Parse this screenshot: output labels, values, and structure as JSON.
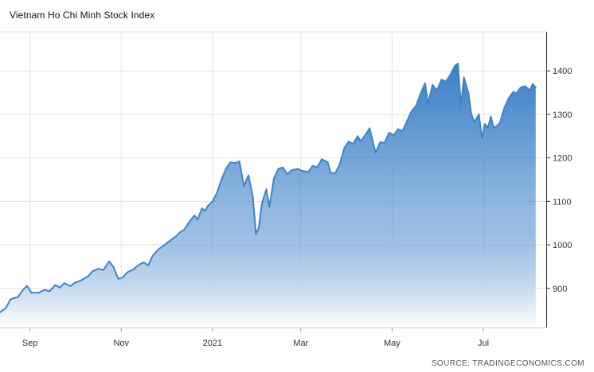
{
  "colors": {
    "line": "#3f83c7",
    "fill_top": "#3a7fc8",
    "fill_bottom": "#ffffff",
    "grid": "#e2e2e2",
    "axis": "#333333"
  },
  "chart_data": {
    "type": "area",
    "title": "Vietnam Ho Chi Minh Stock Index",
    "source": "SOURCE: TRADINGECONOMICS.COM",
    "xlabel": "",
    "ylabel": "",
    "grid": true,
    "y_axis_side": "right",
    "ylim": [
      810,
      1490
    ],
    "y_ticks": [
      900,
      1000,
      1100,
      1200,
      1300,
      1400
    ],
    "x_range": [
      "2020-08-12",
      "2021-08-12"
    ],
    "x_ticks": [
      {
        "label": "Sep",
        "date": "2020-09-01"
      },
      {
        "label": "Nov",
        "date": "2020-11-01"
      },
      {
        "label": "2021",
        "date": "2021-01-01"
      },
      {
        "label": "Mar",
        "date": "2021-03-01"
      },
      {
        "label": "May",
        "date": "2021-05-01"
      },
      {
        "label": "Jul",
        "date": "2021-07-01"
      }
    ],
    "series": [
      {
        "values": [
          [
            "2020-08-12",
            845
          ],
          [
            "2020-08-16",
            855
          ],
          [
            "2020-08-19",
            875
          ],
          [
            "2020-08-24",
            880
          ],
          [
            "2020-08-27",
            895
          ],
          [
            "2020-08-30",
            906
          ],
          [
            "2020-09-02",
            890
          ],
          [
            "2020-09-07",
            890
          ],
          [
            "2020-09-11",
            897
          ],
          [
            "2020-09-14",
            893
          ],
          [
            "2020-09-18",
            908
          ],
          [
            "2020-09-21",
            902
          ],
          [
            "2020-09-24",
            912
          ],
          [
            "2020-09-28",
            905
          ],
          [
            "2020-10-01",
            913
          ],
          [
            "2020-10-05",
            918
          ],
          [
            "2020-10-10",
            928
          ],
          [
            "2020-10-13",
            940
          ],
          [
            "2020-10-17",
            945
          ],
          [
            "2020-10-20",
            942
          ],
          [
            "2020-10-24",
            962
          ],
          [
            "2020-10-27",
            948
          ],
          [
            "2020-10-30",
            922
          ],
          [
            "2020-11-02",
            925
          ],
          [
            "2020-11-05",
            937
          ],
          [
            "2020-11-09",
            943
          ],
          [
            "2020-11-12",
            952
          ],
          [
            "2020-11-16",
            960
          ],
          [
            "2020-11-19",
            953
          ],
          [
            "2020-11-22",
            975
          ],
          [
            "2020-11-26",
            990
          ],
          [
            "2020-11-30",
            1000
          ],
          [
            "2020-12-03",
            1008
          ],
          [
            "2020-12-07",
            1018
          ],
          [
            "2020-12-10",
            1028
          ],
          [
            "2020-12-13",
            1035
          ],
          [
            "2020-12-17",
            1055
          ],
          [
            "2020-12-20",
            1068
          ],
          [
            "2020-12-22",
            1058
          ],
          [
            "2020-12-25",
            1084
          ],
          [
            "2020-12-27",
            1078
          ],
          [
            "2020-12-29",
            1090
          ],
          [
            "2021-01-01",
            1100
          ],
          [
            "2021-01-04",
            1120
          ],
          [
            "2021-01-07",
            1150
          ],
          [
            "2021-01-10",
            1175
          ],
          [
            "2021-01-13",
            1190
          ],
          [
            "2021-01-16",
            1188
          ],
          [
            "2021-01-19",
            1192
          ],
          [
            "2021-01-22",
            1135
          ],
          [
            "2021-01-25",
            1160
          ],
          [
            "2021-01-28",
            1110
          ],
          [
            "2021-01-30",
            1025
          ],
          [
            "2021-02-01",
            1040
          ],
          [
            "2021-02-03",
            1095
          ],
          [
            "2021-02-06",
            1128
          ],
          [
            "2021-02-08",
            1087
          ],
          [
            "2021-02-11",
            1152
          ],
          [
            "2021-02-14",
            1175
          ],
          [
            "2021-02-17",
            1178
          ],
          [
            "2021-02-20",
            1163
          ],
          [
            "2021-02-23",
            1172
          ],
          [
            "2021-02-27",
            1175
          ],
          [
            "2021-03-02",
            1170
          ],
          [
            "2021-03-06",
            1168
          ],
          [
            "2021-03-09",
            1182
          ],
          [
            "2021-03-12",
            1178
          ],
          [
            "2021-03-15",
            1197
          ],
          [
            "2021-03-19",
            1190
          ],
          [
            "2021-03-21",
            1165
          ],
          [
            "2021-03-24",
            1165
          ],
          [
            "2021-03-27",
            1185
          ],
          [
            "2021-03-30",
            1222
          ],
          [
            "2021-04-02",
            1238
          ],
          [
            "2021-04-05",
            1232
          ],
          [
            "2021-04-08",
            1250
          ],
          [
            "2021-04-10",
            1238
          ],
          [
            "2021-04-13",
            1252
          ],
          [
            "2021-04-16",
            1268
          ],
          [
            "2021-04-18",
            1240
          ],
          [
            "2021-04-20",
            1212
          ],
          [
            "2021-04-23",
            1236
          ],
          [
            "2021-04-26",
            1235
          ],
          [
            "2021-04-29",
            1258
          ],
          [
            "2021-05-02",
            1252
          ],
          [
            "2021-05-05",
            1266
          ],
          [
            "2021-05-08",
            1262
          ],
          [
            "2021-05-11",
            1285
          ],
          [
            "2021-05-14",
            1307
          ],
          [
            "2021-05-17",
            1320
          ],
          [
            "2021-05-20",
            1347
          ],
          [
            "2021-05-23",
            1372
          ],
          [
            "2021-05-25",
            1325
          ],
          [
            "2021-05-28",
            1368
          ],
          [
            "2021-05-31",
            1355
          ],
          [
            "2021-06-03",
            1380
          ],
          [
            "2021-06-06",
            1376
          ],
          [
            "2021-06-09",
            1392
          ],
          [
            "2021-06-12",
            1412
          ],
          [
            "2021-06-14",
            1417
          ],
          [
            "2021-06-16",
            1320
          ],
          [
            "2021-06-18",
            1385
          ],
          [
            "2021-06-21",
            1350
          ],
          [
            "2021-06-23",
            1300
          ],
          [
            "2021-06-25",
            1282
          ],
          [
            "2021-06-28",
            1300
          ],
          [
            "2021-06-30",
            1245
          ],
          [
            "2021-07-02",
            1278
          ],
          [
            "2021-07-04",
            1270
          ],
          [
            "2021-07-06",
            1295
          ],
          [
            "2021-07-08",
            1268
          ],
          [
            "2021-07-12",
            1280
          ],
          [
            "2021-07-15",
            1315
          ],
          [
            "2021-07-18",
            1338
          ],
          [
            "2021-07-21",
            1352
          ],
          [
            "2021-07-23",
            1348
          ],
          [
            "2021-07-26",
            1362
          ],
          [
            "2021-07-29",
            1365
          ],
          [
            "2021-08-01",
            1355
          ],
          [
            "2021-08-03",
            1370
          ],
          [
            "2021-08-05",
            1362
          ]
        ]
      }
    ]
  }
}
